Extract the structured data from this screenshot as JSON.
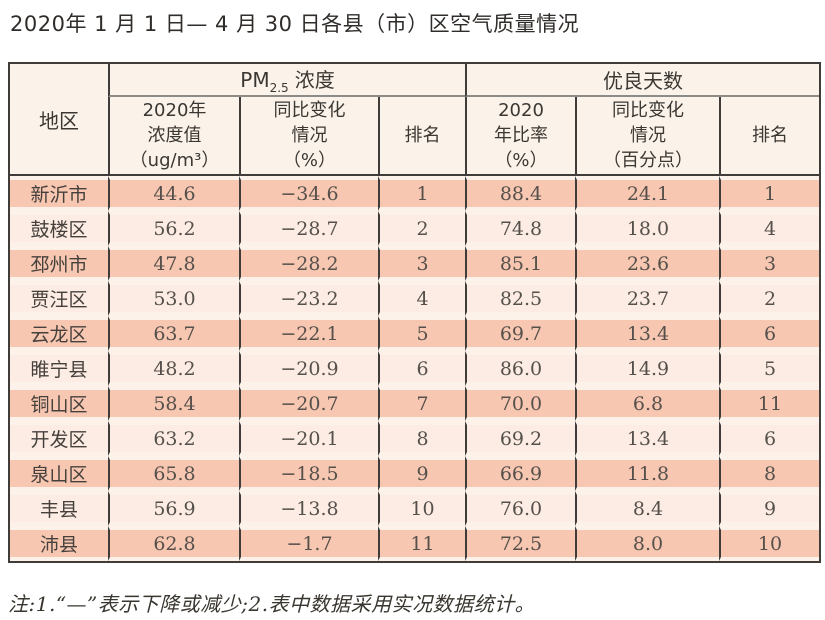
{
  "title": "2020年 1 月 1 日— 4 月 30 日各县（市）区空气质量情况",
  "table": {
    "header": {
      "region": "地区",
      "pm_prefix": "PM",
      "pm_sub": "2.5",
      "pm_suffix": "浓度",
      "good_group": "优良天数",
      "pm_value": "2020年\n浓度值\n（ug/m³）",
      "pm_change": "同比变化\n情况\n（%）",
      "pm_rank": "排名",
      "good_ratio": "2020\n年比率\n（%）",
      "ratio_change": "同比变化\n情况\n（百分点）",
      "good_rank": "排名"
    },
    "rows": [
      {
        "region": "新沂市",
        "pm_value": "44.6",
        "pm_change": "−34.6",
        "pm_rank": "1",
        "good_ratio": "88.4",
        "ratio_change": "24.1",
        "good_rank": "1"
      },
      {
        "region": "鼓楼区",
        "pm_value": "56.2",
        "pm_change": "−28.7",
        "pm_rank": "2",
        "good_ratio": "74.8",
        "ratio_change": "18.0",
        "good_rank": "4"
      },
      {
        "region": "邳州市",
        "pm_value": "47.8",
        "pm_change": "−28.2",
        "pm_rank": "3",
        "good_ratio": "85.1",
        "ratio_change": "23.6",
        "good_rank": "3"
      },
      {
        "region": "贾汪区",
        "pm_value": "53.0",
        "pm_change": "−23.2",
        "pm_rank": "4",
        "good_ratio": "82.5",
        "ratio_change": "23.7",
        "good_rank": "2"
      },
      {
        "region": "云龙区",
        "pm_value": "63.7",
        "pm_change": "−22.1",
        "pm_rank": "5",
        "good_ratio": "69.7",
        "ratio_change": "13.4",
        "good_rank": "6"
      },
      {
        "region": "睢宁县",
        "pm_value": "48.2",
        "pm_change": "−20.9",
        "pm_rank": "6",
        "good_ratio": "86.0",
        "ratio_change": "14.9",
        "good_rank": "5"
      },
      {
        "region": "铜山区",
        "pm_value": "58.4",
        "pm_change": "−20.7",
        "pm_rank": "7",
        "good_ratio": "70.0",
        "ratio_change": "6.8",
        "good_rank": "11"
      },
      {
        "region": "开发区",
        "pm_value": "63.2",
        "pm_change": "−20.1",
        "pm_rank": "8",
        "good_ratio": "69.2",
        "ratio_change": "13.4",
        "good_rank": "6"
      },
      {
        "region": "泉山区",
        "pm_value": "65.8",
        "pm_change": "−18.5",
        "pm_rank": "9",
        "good_ratio": "66.9",
        "ratio_change": "11.8",
        "good_rank": "8"
      },
      {
        "region": "丰县",
        "pm_value": "56.9",
        "pm_change": "−13.8",
        "pm_rank": "10",
        "good_ratio": "76.0",
        "ratio_change": "8.4",
        "good_rank": "9"
      },
      {
        "region": "沛县",
        "pm_value": "62.8",
        "pm_change": "−1.7",
        "pm_rank": "11",
        "good_ratio": "72.5",
        "ratio_change": "8.0",
        "good_rank": "10"
      }
    ]
  },
  "note": "注:1.“—”表示下降或减少;2.表中数据采用实况数据统计。",
  "colors": {
    "stripe_dark": "#f7c7b1",
    "stripe_light": "#fcece3",
    "row_gap": "#fdf2ea",
    "header_bg": "#fbf3e9",
    "border_dark": "#3f3c39",
    "border_gray": "#8d8b88"
  }
}
